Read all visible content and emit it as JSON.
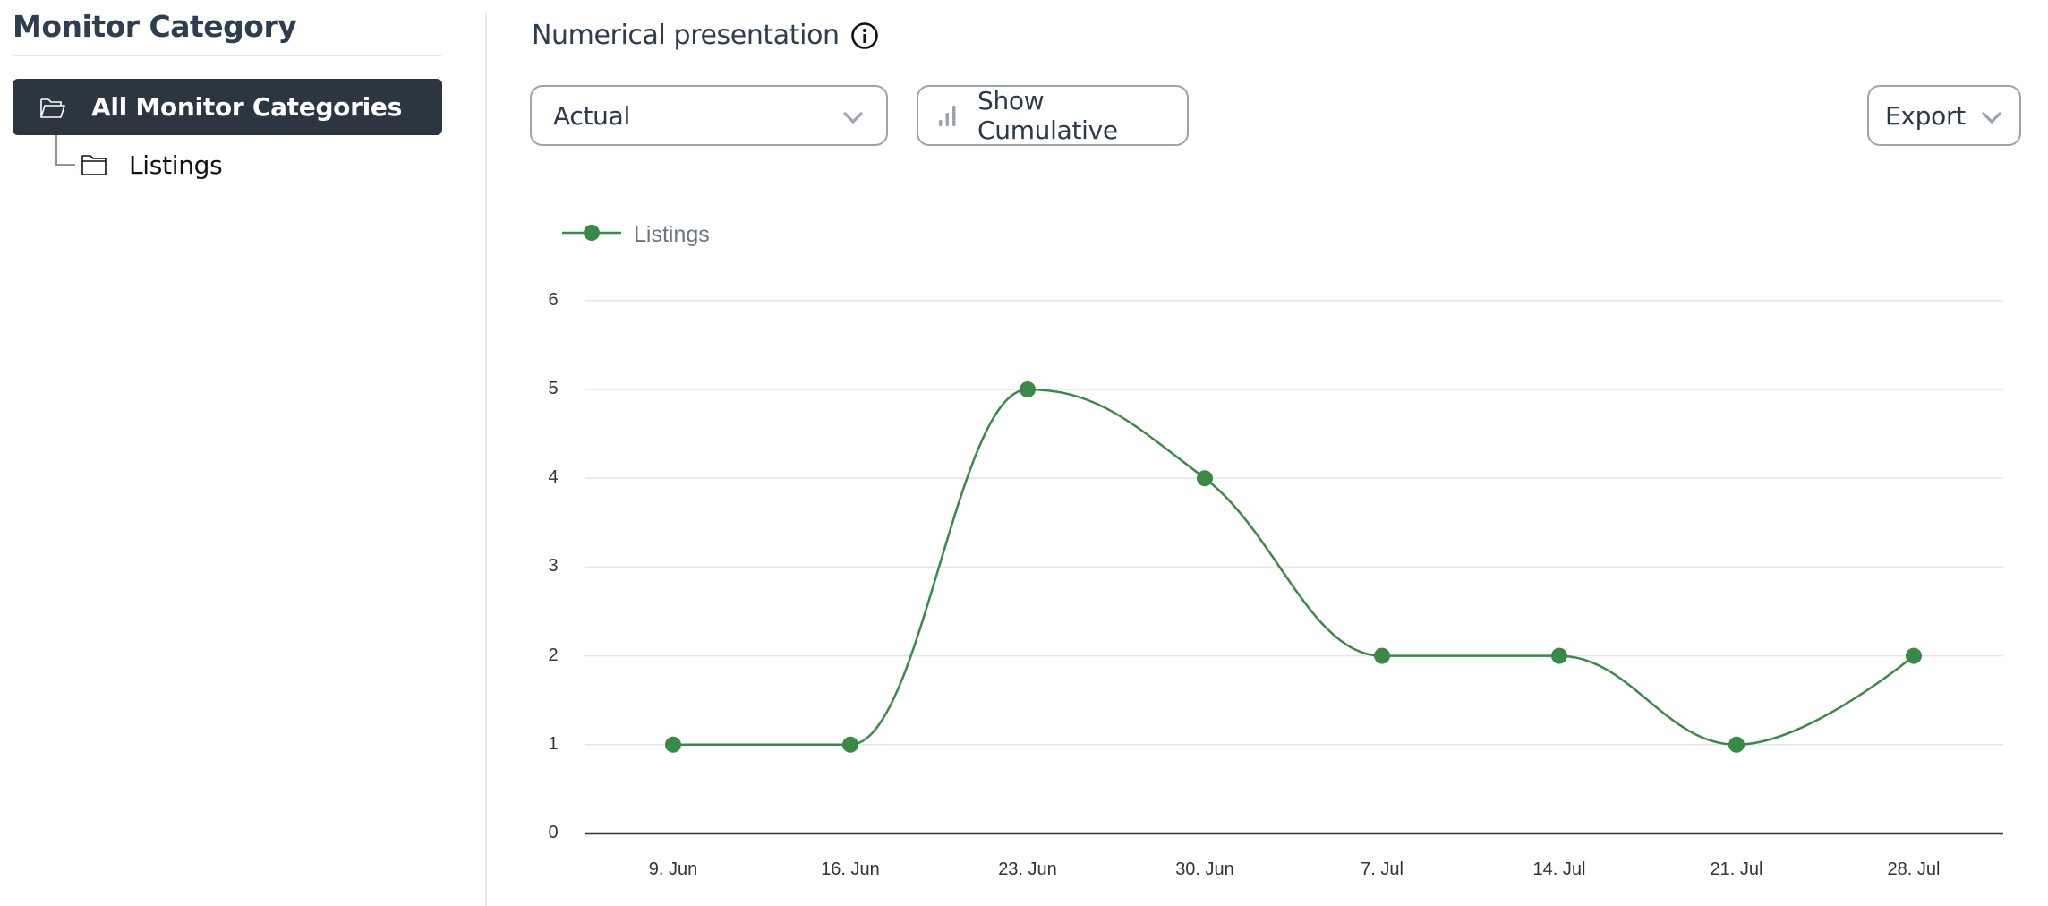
{
  "sidebar": {
    "title": "Monitor Category",
    "tree": {
      "root": {
        "label": "All Monitor Categories",
        "icon": "folder-open-icon",
        "selected": true
      },
      "children": [
        {
          "label": "Listings",
          "icon": "folder-icon"
        }
      ]
    }
  },
  "main": {
    "title": "Numerical presentation",
    "title_icon": "info-icon",
    "mode_select": {
      "value": "Actual",
      "icon": "chevron-down-icon"
    },
    "cumulative_button": {
      "label": "Show Cumulative",
      "icon": "bar-chart-icon"
    },
    "export_button": {
      "label": "Export",
      "icon": "chevron-down-icon"
    }
  },
  "colors": {
    "series": "#3a8a47",
    "sidebar_selected_bg": "#2c3640",
    "gridline": "#e6e6e6",
    "axis": "#333333"
  },
  "chart_data": {
    "type": "line",
    "title": "",
    "xlabel": "",
    "ylabel": "",
    "legend": {
      "position": "top-left",
      "entries": [
        "Listings"
      ]
    },
    "grid": true,
    "ylim": [
      0,
      6
    ],
    "yticks": [
      "0",
      "1",
      "2",
      "3",
      "4",
      "5",
      "6"
    ],
    "categories": [
      "9. Jun",
      "16. Jun",
      "23. Jun",
      "30. Jun",
      "7. Jul",
      "14. Jul",
      "21. Jul",
      "28. Jul"
    ],
    "series": [
      {
        "name": "Listings",
        "color": "#3a8a47",
        "smooth": true,
        "markers": true,
        "values": [
          1,
          1,
          5,
          4,
          2,
          2,
          1,
          2
        ]
      }
    ]
  }
}
